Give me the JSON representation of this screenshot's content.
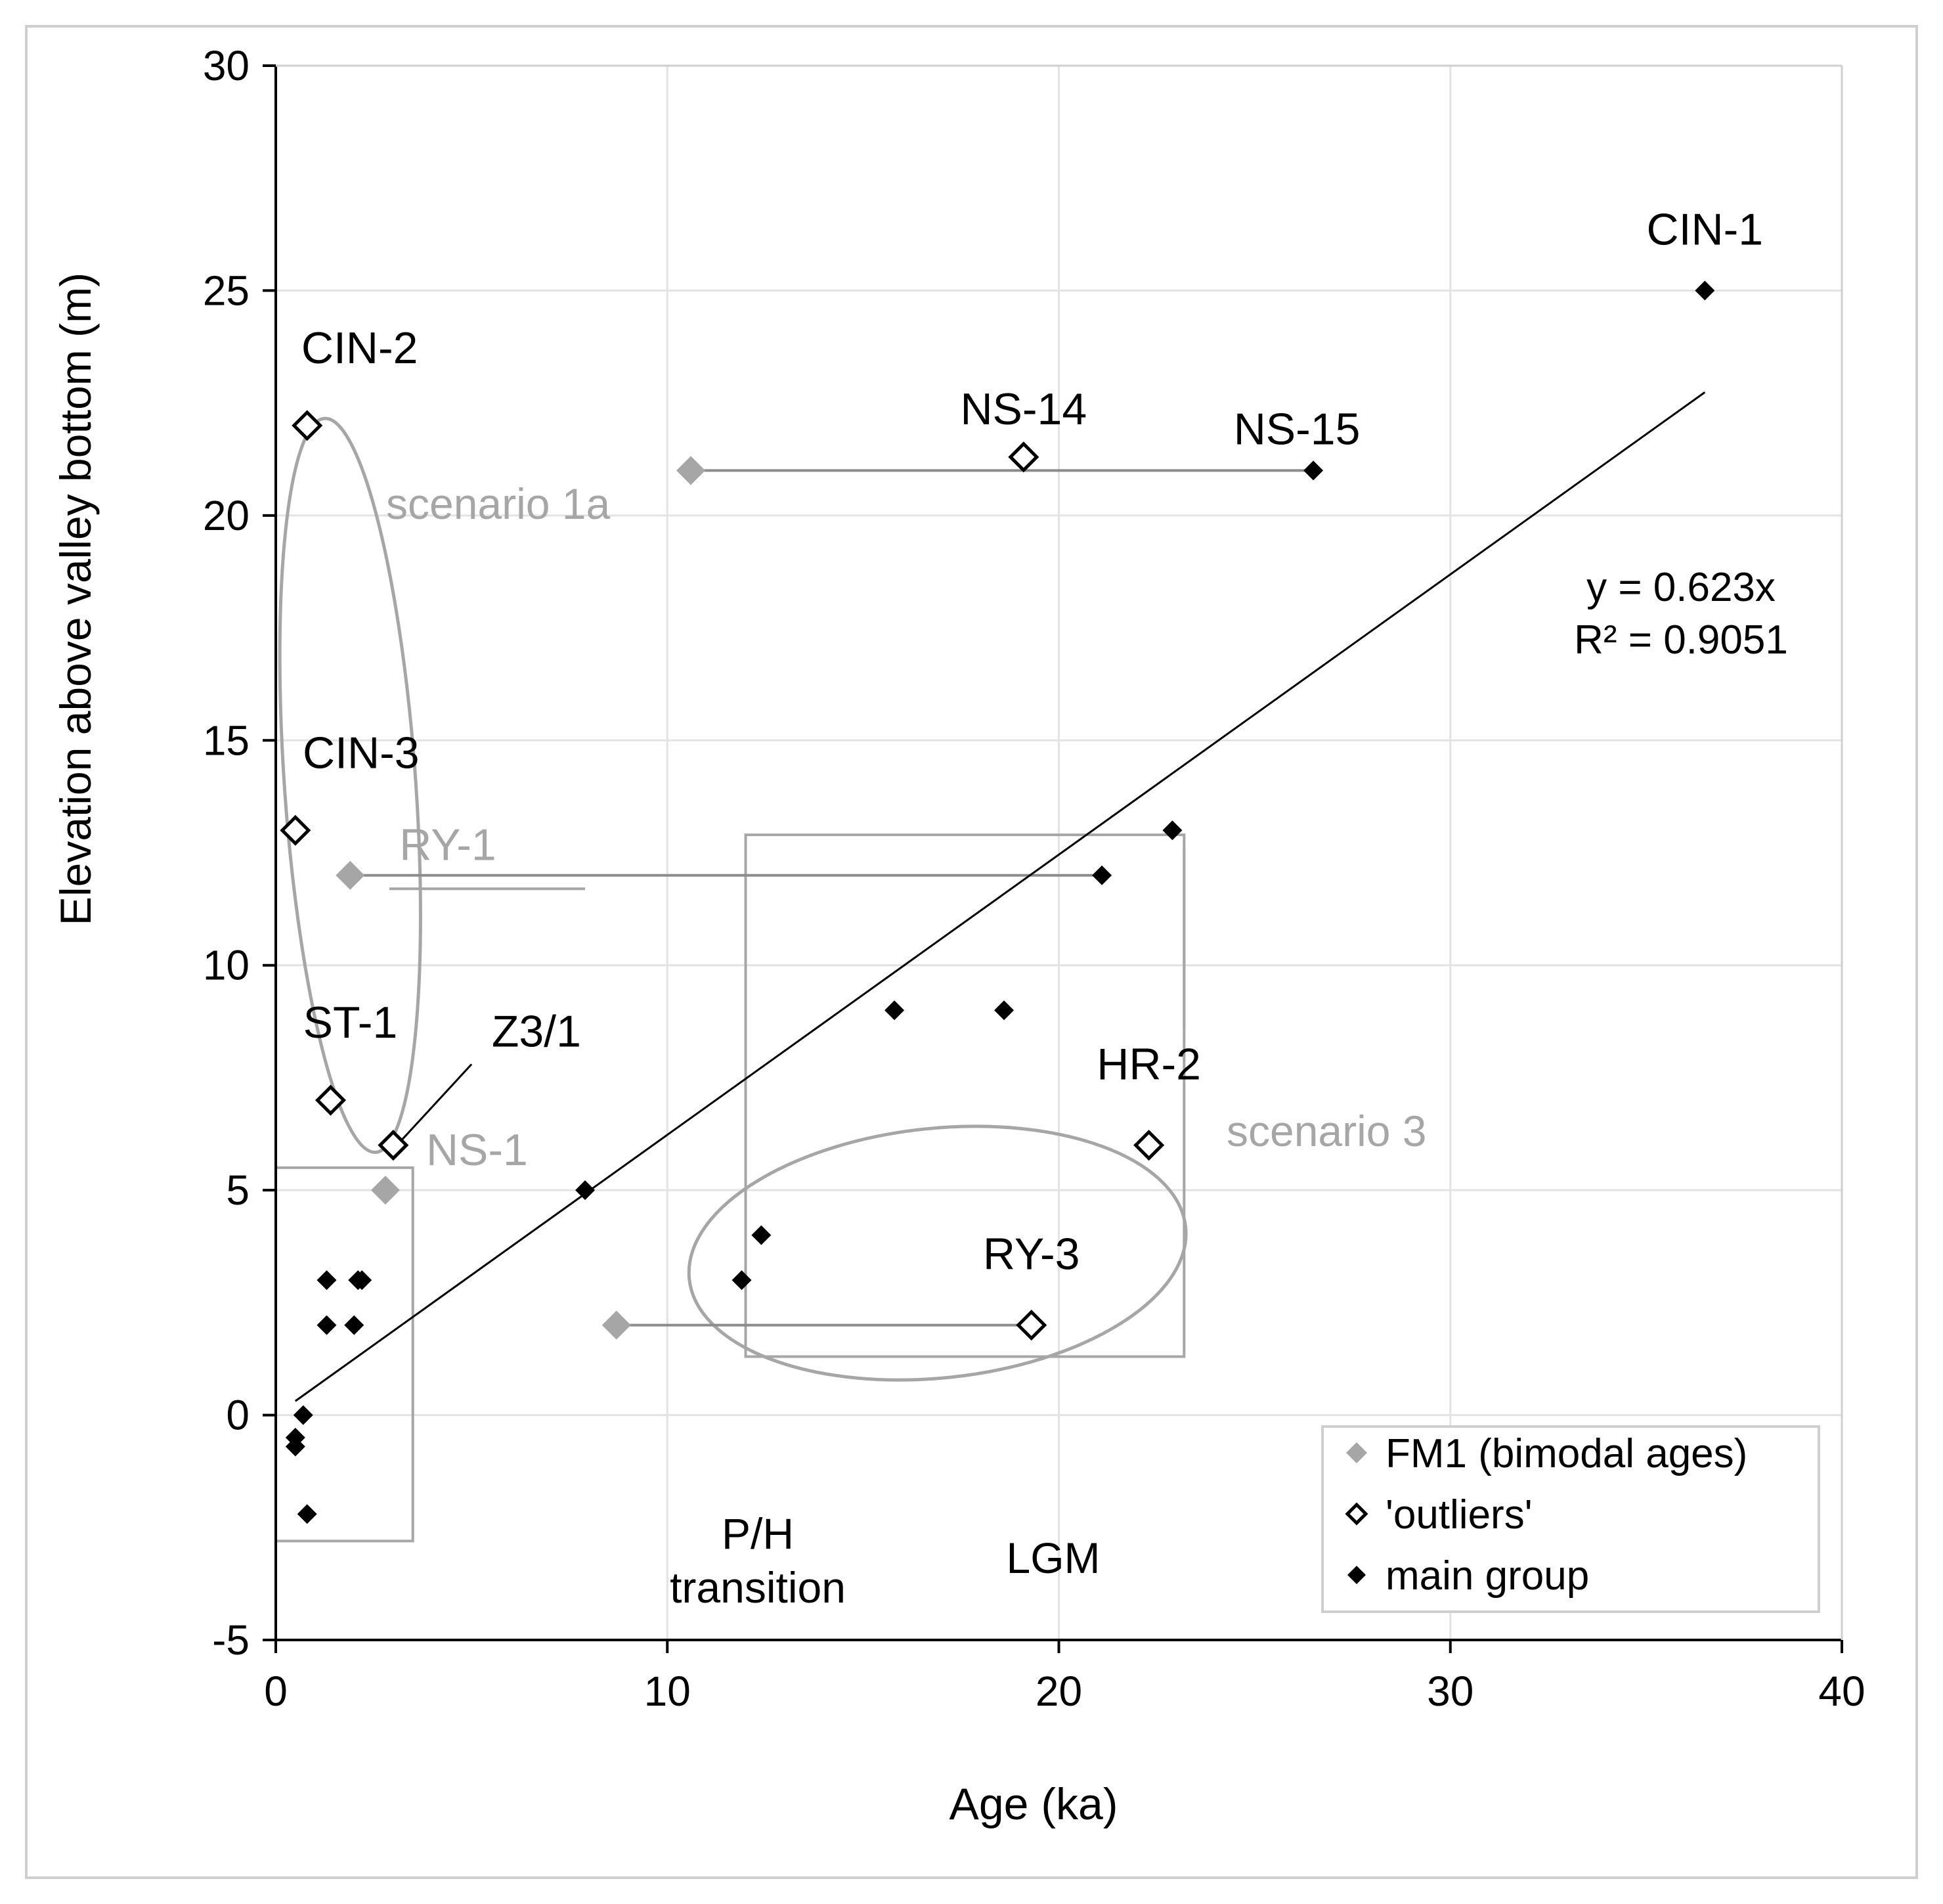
{
  "chart_data": {
    "type": "scatter",
    "title": "",
    "xlabel": "Age (ka)",
    "ylabel": "Elevation above valley bottom (m)",
    "xlim": [
      0,
      40
    ],
    "ylim": [
      -5,
      30
    ],
    "xticks": [
      0,
      10,
      20,
      30,
      40
    ],
    "yticks": [
      -5,
      0,
      5,
      10,
      15,
      20,
      25,
      30
    ],
    "grid": true,
    "legend_position": "bottom-right",
    "colors": {
      "fm1": "#a6a6a6",
      "outliers": "#000000",
      "main": "#000000",
      "trend": "#000000",
      "annotation": "#a6a6a6",
      "label": "#000000"
    },
    "series": [
      {
        "name": "FM1 (bimodal ages)",
        "marker": "diamond-filled-gray",
        "points": [
          [
            10.6,
            21
          ],
          [
            1.9,
            12
          ],
          [
            2.8,
            5
          ],
          [
            8.7,
            2
          ]
        ]
      },
      {
        "name": "'outliers'",
        "marker": "diamond-open",
        "points": [
          [
            0.8,
            22
          ],
          [
            0.5,
            13
          ],
          [
            1.4,
            7
          ],
          [
            3.0,
            6
          ],
          [
            19.1,
            21.3
          ],
          [
            22.3,
            6
          ],
          [
            19.3,
            2
          ]
        ]
      },
      {
        "name": "main group",
        "marker": "diamond-filled-black",
        "points": [
          [
            36.5,
            25
          ],
          [
            26.5,
            21
          ],
          [
            22.9,
            13
          ],
          [
            21.1,
            12
          ],
          [
            15.8,
            9
          ],
          [
            18.6,
            9
          ],
          [
            7.9,
            5
          ],
          [
            12.4,
            4
          ],
          [
            11.9,
            3
          ],
          [
            1.3,
            3
          ],
          [
            2.1,
            3
          ],
          [
            2.2,
            3
          ],
          [
            1.3,
            2
          ],
          [
            2.0,
            2
          ],
          [
            0.7,
            0
          ],
          [
            0.5,
            -0.5
          ],
          [
            0.5,
            -0.7
          ],
          [
            0.8,
            -2.2
          ]
        ]
      }
    ],
    "trendline": {
      "equation": "y = 0.623x",
      "r2": "R² = 0.9051",
      "x_range": [
        0.5,
        36.5
      ],
      "slope": 0.623
    },
    "point_labels": [
      {
        "text": "CIN-1",
        "x": 36.5,
        "y": 25,
        "style": "black"
      },
      {
        "text": "CIN-2",
        "x": 0.8,
        "y": 22,
        "style": "black"
      },
      {
        "text": "NS-14",
        "x": 19.1,
        "y": 21.3,
        "style": "black"
      },
      {
        "text": "NS-15",
        "x": 26.5,
        "y": 21,
        "style": "black"
      },
      {
        "text": "CIN-3",
        "x": 0.5,
        "y": 13,
        "style": "black"
      },
      {
        "text": "ST-1",
        "x": 1.4,
        "y": 7,
        "style": "black"
      },
      {
        "text": "Z3/1",
        "x": 3.0,
        "y": 6,
        "style": "black"
      },
      {
        "text": "HR-2",
        "x": 22.3,
        "y": 6,
        "style": "black"
      },
      {
        "text": "RY-3",
        "x": 19.3,
        "y": 2,
        "style": "black"
      },
      {
        "text": "RY-1",
        "x": 1.9,
        "y": 12,
        "style": "gray"
      },
      {
        "text": "NS-1",
        "x": 2.8,
        "y": 5,
        "style": "gray"
      }
    ],
    "annotations": [
      {
        "text": "scenario 1a",
        "style": "gray"
      },
      {
        "text": "scenario 3",
        "style": "gray"
      },
      {
        "text": "P/H",
        "style": "black"
      },
      {
        "text": "transition",
        "style": "black"
      },
      {
        "text": "LGM",
        "style": "black"
      }
    ],
    "connectors": [
      {
        "from": [
          10.6,
          21
        ],
        "to": [
          26.5,
          21
        ]
      },
      {
        "from": [
          1.9,
          12
        ],
        "to": [
          21.1,
          12
        ]
      },
      {
        "from": [
          8.7,
          2
        ],
        "to": [
          19.3,
          2
        ]
      }
    ],
    "boxes": [
      {
        "x0": 0,
        "x1": 3.5,
        "y0": -2.8,
        "y1": 5.5
      },
      {
        "x0": 12.0,
        "x1": 23.2,
        "y0": 1.3,
        "y1": 12.9
      }
    ]
  }
}
